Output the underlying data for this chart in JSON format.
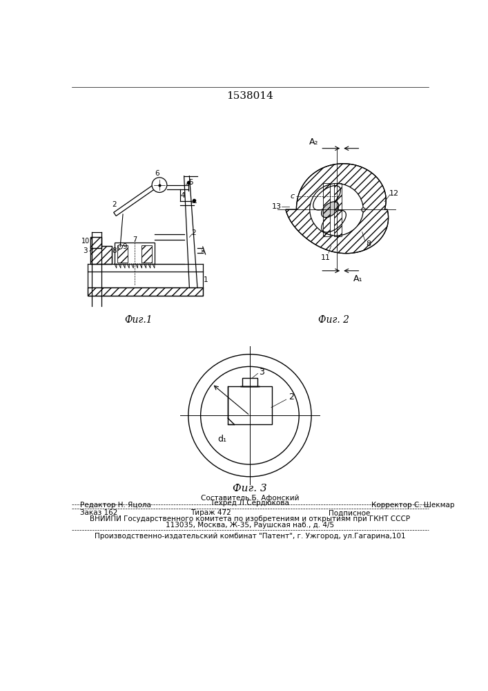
{
  "title": "1538014",
  "background_color": "#ffffff",
  "fig1_caption": "Фиг.1",
  "fig2_caption": "Фиг. 2",
  "fig3_caption": "Фиг. 3",
  "footer_line1_col1": "Редактор Н. Яцола",
  "footer_line1_col2": "Составитель Б. Афонский",
  "footer_line1_col3": "Корректор С. Шекмар",
  "footer_line2_col2": "Техред Л.Сердюкова",
  "footer_zakas": "Заказ 162",
  "footer_tirazh": "Тираж 472",
  "footer_podpisnoe": "Подписное",
  "footer_vniip1": "ВНИИПИ Государственного комитета по изобретениям и открытиям при ГКНТ СССР",
  "footer_vniip2": "113035, Москва, Ж-35, Раушская наб., д. 4/5",
  "footer_proizv": "Производственно-издательский комбинат \"Патент\", г. Ужгород, ул.Гагарина,101",
  "text_color": "#000000",
  "line_color": "#000000"
}
